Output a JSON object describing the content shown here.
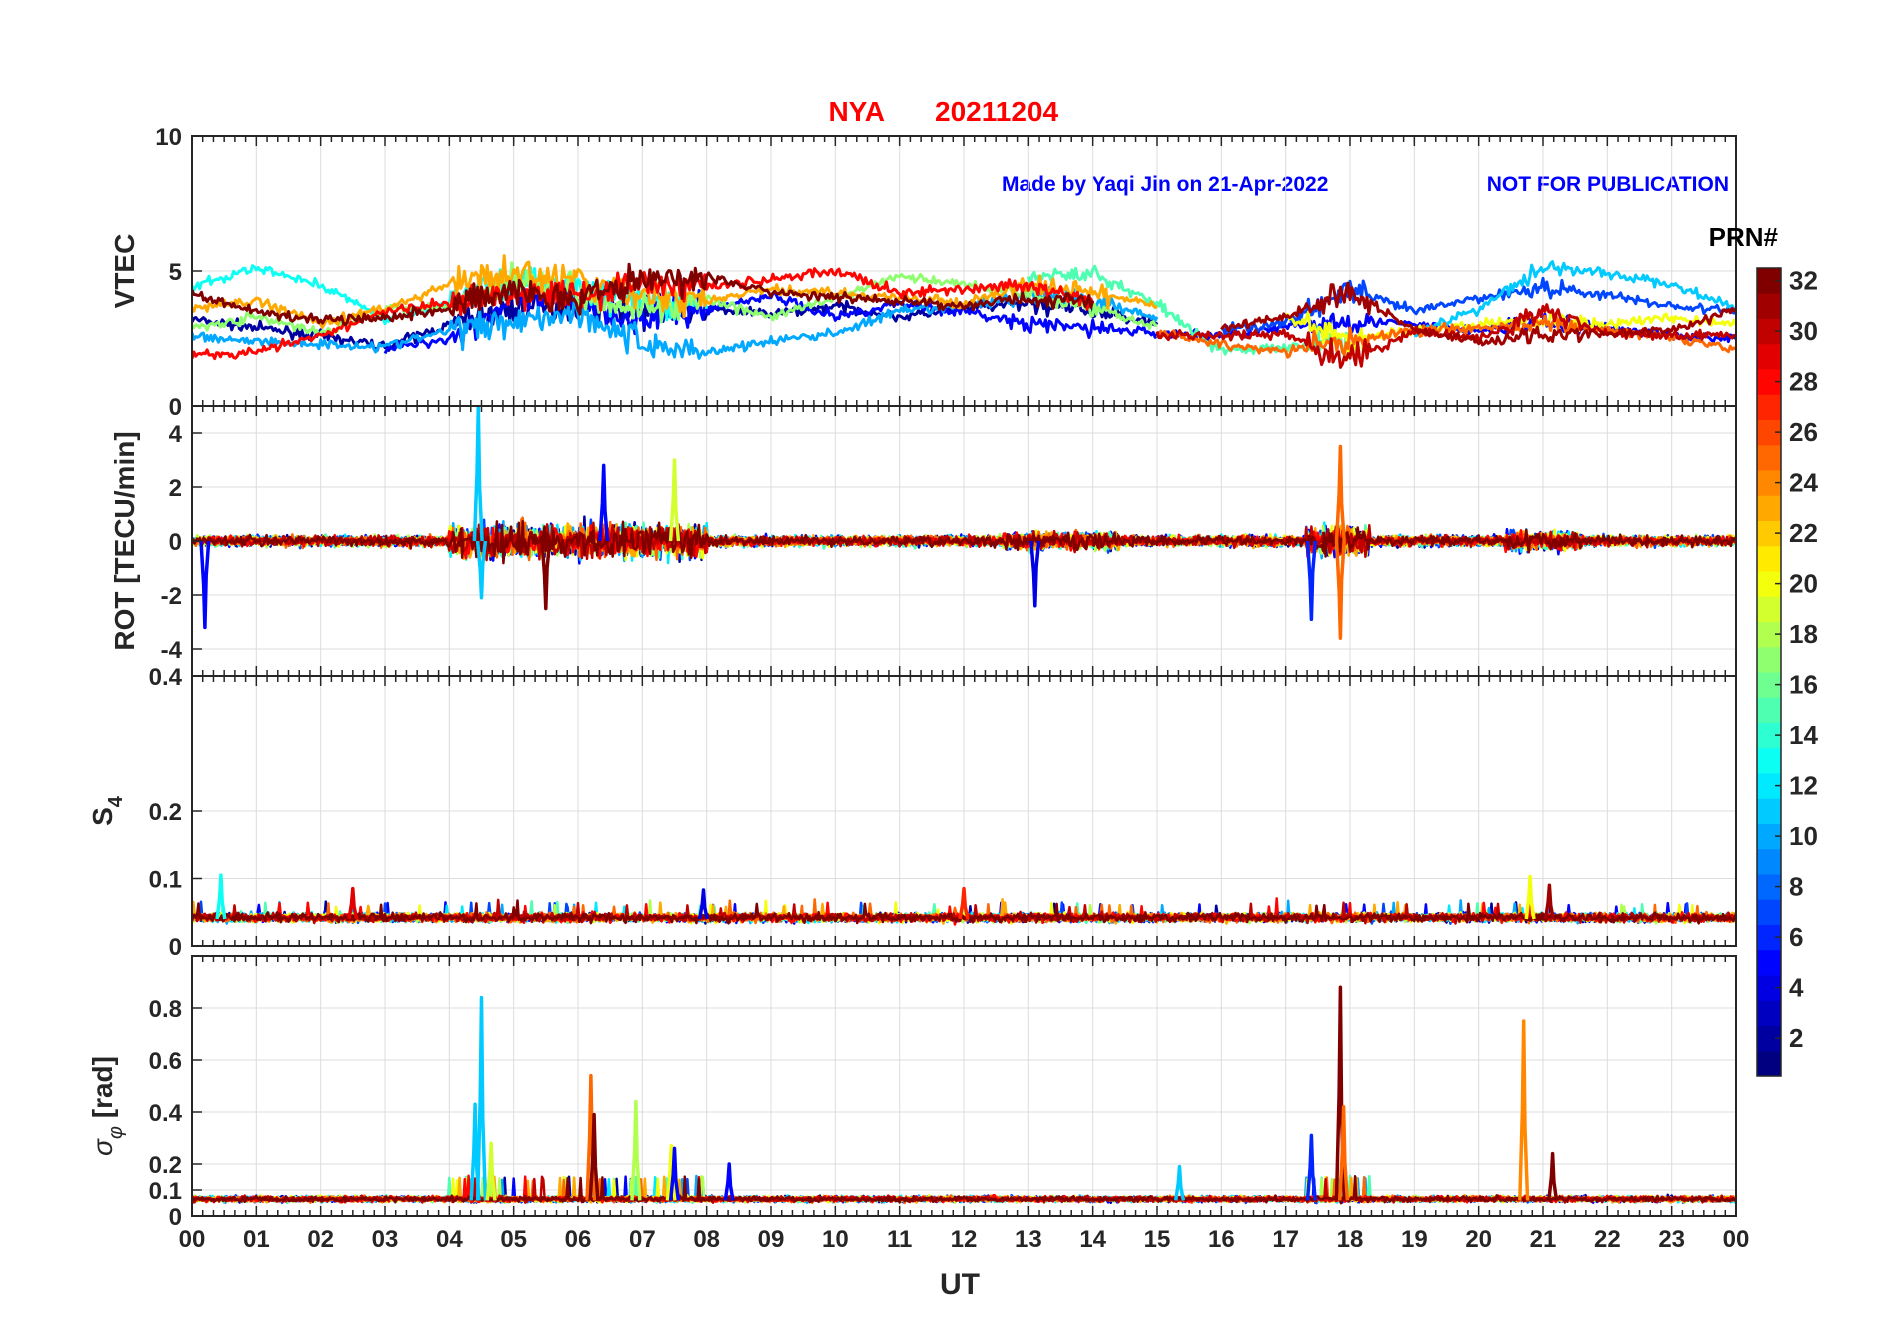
{
  "figure": {
    "title_station": "NYA",
    "title_date": "20211204",
    "credit": "Made by Yaqi Jin on 21-Apr-2022",
    "watermark": "NOT FOR PUBLICATION",
    "xlabel": "UT",
    "colorbar_title": "PRN#",
    "colorbar_ticks": [
      "2",
      "4",
      "6",
      "8",
      "10",
      "12",
      "14",
      "16",
      "18",
      "20",
      "22",
      "24",
      "26",
      "28",
      "30",
      "32"
    ]
  },
  "chart_data": [
    {
      "type": "line",
      "panel": "VTEC",
      "ylabel": "VTEC",
      "ylim": [
        0,
        10
      ],
      "yticks": [
        0,
        5,
        10
      ],
      "xlim": [
        0,
        24
      ],
      "x_tick_labels": [
        "00",
        "01",
        "02",
        "03",
        "04",
        "05",
        "06",
        "07",
        "08",
        "09",
        "10",
        "11",
        "12",
        "13",
        "14",
        "15",
        "16",
        "17",
        "18",
        "19",
        "20",
        "21",
        "22",
        "23",
        "00"
      ],
      "grid": true,
      "colormap": "jet, 32 levels by PRN",
      "series": [
        {
          "prn": 2,
          "x": [
            0,
            1,
            2,
            3,
            4,
            5,
            6,
            7,
            8,
            9,
            10,
            11,
            12,
            13,
            14,
            15
          ],
          "values": [
            3.2,
            2.9,
            2.6,
            2.2,
            3.0,
            3.6,
            3.8,
            3.5,
            3.6,
            3.4,
            3.7,
            3.3,
            3.6,
            3.8,
            3.5,
            3.1
          ]
        },
        {
          "prn": 5,
          "x": [
            3,
            4,
            5,
            6,
            7,
            8,
            9,
            10,
            11,
            12,
            13,
            14,
            15,
            16,
            17,
            18,
            19,
            20,
            21,
            22,
            23,
            24
          ],
          "values": [
            2.1,
            2.5,
            3.9,
            4.0,
            3.1,
            3.6,
            4.1,
            3.3,
            3.8,
            3.5,
            3.0,
            2.9,
            2.7,
            2.6,
            2.9,
            3.2,
            3.0,
            2.8,
            3.1,
            2.9,
            2.6,
            2.5
          ]
        },
        {
          "prn": 7,
          "x": [
            16,
            17,
            18,
            19,
            20,
            21,
            22,
            23,
            24
          ],
          "values": [
            2.8,
            3.1,
            4.3,
            3.5,
            4.0,
            4.4,
            4.1,
            3.7,
            3.5
          ]
        },
        {
          "prn": 10,
          "x": [
            0,
            1,
            2,
            3,
            4,
            5,
            6,
            7,
            8,
            9,
            10,
            11,
            12,
            13,
            14,
            15
          ],
          "values": [
            2.6,
            2.4,
            2.3,
            2.2,
            2.8,
            3.2,
            3.5,
            2.3,
            2.0,
            2.4,
            2.7,
            3.5,
            3.7,
            4.1,
            3.9,
            3.3
          ]
        },
        {
          "prn": 11,
          "x": [
            19,
            20,
            21,
            22,
            23,
            24
          ],
          "values": [
            2.7,
            3.6,
            5.2,
            4.9,
            4.5,
            3.6
          ]
        },
        {
          "prn": 13,
          "x": [
            0,
            1,
            2,
            3,
            4,
            5,
            6,
            7,
            8
          ],
          "values": [
            4.4,
            5.1,
            4.5,
            3.2,
            3.8,
            4.7,
            4.3,
            3.9,
            3.6
          ]
        },
        {
          "prn": 15,
          "x": [
            13,
            14,
            15,
            16,
            17,
            18
          ],
          "values": [
            4.8,
            4.9,
            3.8,
            2.0,
            2.2,
            2.5
          ]
        },
        {
          "prn": 17,
          "x": [
            0,
            1,
            2,
            3,
            4,
            5,
            6,
            7,
            8,
            9,
            10,
            11,
            12,
            13,
            14,
            15
          ],
          "values": [
            2.9,
            3.3,
            2.7,
            3.6,
            3.7,
            4.8,
            4.2,
            3.6,
            3.9,
            3.3,
            4.0,
            4.8,
            4.5,
            4.2,
            3.6,
            3.0
          ]
        },
        {
          "prn": 20,
          "x": [
            17,
            18,
            19,
            20,
            21,
            22,
            23,
            24
          ],
          "values": [
            3.3,
            2.4,
            2.8,
            3.0,
            3.2,
            3.0,
            3.3,
            3.0
          ]
        },
        {
          "prn": 23,
          "x": [
            0,
            1,
            2,
            3,
            4,
            5,
            6,
            7,
            8,
            9,
            10,
            11,
            12,
            13,
            14,
            15
          ],
          "values": [
            3.6,
            3.9,
            3.1,
            3.6,
            4.5,
            4.9,
            4.6,
            4.1,
            3.9,
            4.3,
            4.2,
            4.0,
            3.8,
            4.5,
            4.2,
            3.7
          ]
        },
        {
          "prn": 25,
          "x": [
            15,
            16,
            17,
            18,
            19,
            20,
            21,
            22,
            23,
            24
          ],
          "values": [
            2.7,
            2.3,
            2.0,
            2.4,
            2.8,
            2.9,
            3.0,
            2.8,
            2.6,
            2.1
          ]
        },
        {
          "prn": 28,
          "x": [
            0,
            1,
            2,
            3,
            4,
            5,
            6,
            7,
            8,
            9,
            10,
            11,
            12,
            13,
            14
          ],
          "values": [
            1.9,
            2.0,
            2.6,
            3.5,
            3.8,
            4.3,
            4.1,
            4.6,
            4.4,
            4.7,
            5.0,
            4.2,
            4.3,
            4.5,
            3.8
          ]
        },
        {
          "prn": 30,
          "x": [
            15,
            16,
            17,
            18,
            19,
            20,
            21,
            22,
            23,
            24
          ],
          "values": [
            2.6,
            2.6,
            2.7,
            1.6,
            2.8,
            2.5,
            3.5,
            2.7,
            2.6,
            2.6
          ]
        },
        {
          "prn": 32,
          "x": [
            0,
            1,
            2,
            3,
            4,
            5,
            6,
            7,
            8,
            9,
            10,
            11,
            12,
            13,
            14
          ],
          "values": [
            4.2,
            3.5,
            3.2,
            3.3,
            3.6,
            4.4,
            3.9,
            4.7,
            4.8,
            4.2,
            4.0,
            3.9,
            3.7,
            4.0,
            3.9
          ]
        },
        {
          "prn": 31,
          "x": [
            16,
            17,
            18,
            19,
            20,
            21,
            22,
            23,
            24
          ],
          "values": [
            2.9,
            3.3,
            4.3,
            2.8,
            2.4,
            2.6,
            2.7,
            2.8,
            3.6
          ]
        }
      ]
    },
    {
      "type": "line",
      "panel": "ROT",
      "ylabel": "ROT [TECU/min]",
      "ylim": [
        -5,
        5
      ],
      "yticks": [
        -4,
        -2,
        0,
        2,
        4
      ],
      "xlim": [
        0,
        24
      ],
      "grid": true,
      "description_of_values": "ROT fluctuates around 0 with |ROT| < 1 most of the day; bursts to about ±3 between 04 and 08 UT, spike to about 5 near 04.4 UT, spike to about -3.6 and 3.5 near 17.8 UT",
      "spikes": [
        {
          "x": 0.2,
          "value": -3.2,
          "prn": 5
        },
        {
          "x": 4.45,
          "value": 5.0,
          "prn": 11
        },
        {
          "x": 4.5,
          "value": -2.1,
          "prn": 11
        },
        {
          "x": 5.5,
          "value": -2.5,
          "prn": 32
        },
        {
          "x": 6.4,
          "value": 2.8,
          "prn": 5
        },
        {
          "x": 7.5,
          "value": 3.0,
          "prn": 19
        },
        {
          "x": 13.1,
          "value": -2.4,
          "prn": 4
        },
        {
          "x": 17.85,
          "value": 3.5,
          "prn": 25
        },
        {
          "x": 17.85,
          "value": -3.6,
          "prn": 25
        },
        {
          "x": 17.4,
          "value": -2.9,
          "prn": 6
        }
      ]
    },
    {
      "type": "line",
      "panel": "S4",
      "ylabel": "S4",
      "ylim": [
        0,
        0.4
      ],
      "yticks": [
        0,
        0.1,
        0.2,
        0.4
      ],
      "xlim": [
        0,
        24
      ],
      "grid": true,
      "description_of_values": "S4 mostly between 0.03 and 0.07 all day; occasional peaks to about 0.1",
      "peaks": [
        {
          "x": 0.45,
          "value": 0.105,
          "prn": 13
        },
        {
          "x": 2.5,
          "value": 0.085,
          "prn": 29
        },
        {
          "x": 7.95,
          "value": 0.083,
          "prn": 4
        },
        {
          "x": 12.0,
          "value": 0.085,
          "prn": 27
        },
        {
          "x": 20.8,
          "value": 0.103,
          "prn": 20
        },
        {
          "x": 21.1,
          "value": 0.09,
          "prn": 31
        }
      ]
    },
    {
      "type": "line",
      "panel": "sigma_phi",
      "ylabel": "σφ [rad]",
      "ylim": [
        0,
        1
      ],
      "yticks": [
        0,
        0.1,
        0.2,
        0.4,
        0.6,
        0.8
      ],
      "xlim": [
        0,
        24
      ],
      "grid": true,
      "description_of_values": "σφ baseline about 0.05–0.08 rad; spikes at 04.5 UT (0.84), 06.2 UT (0.54), 17.8 UT (0.88) and 20.7 UT (0.75)",
      "peaks": [
        {
          "x": 4.5,
          "value": 0.84,
          "prn": 11
        },
        {
          "x": 4.4,
          "value": 0.43,
          "prn": 11
        },
        {
          "x": 4.65,
          "value": 0.28,
          "prn": 19
        },
        {
          "x": 6.2,
          "value": 0.54,
          "prn": 25
        },
        {
          "x": 6.25,
          "value": 0.39,
          "prn": 32
        },
        {
          "x": 6.9,
          "value": 0.44,
          "prn": 18
        },
        {
          "x": 7.45,
          "value": 0.27,
          "prn": 20
        },
        {
          "x": 7.5,
          "value": 0.26,
          "prn": 5
        },
        {
          "x": 8.35,
          "value": 0.2,
          "prn": 5
        },
        {
          "x": 15.35,
          "value": 0.19,
          "prn": 11
        },
        {
          "x": 17.4,
          "value": 0.31,
          "prn": 6
        },
        {
          "x": 17.85,
          "value": 0.88,
          "prn": 32
        },
        {
          "x": 17.9,
          "value": 0.42,
          "prn": 25
        },
        {
          "x": 20.7,
          "value": 0.75,
          "prn": 24
        },
        {
          "x": 21.15,
          "value": 0.24,
          "prn": 32
        }
      ]
    }
  ]
}
